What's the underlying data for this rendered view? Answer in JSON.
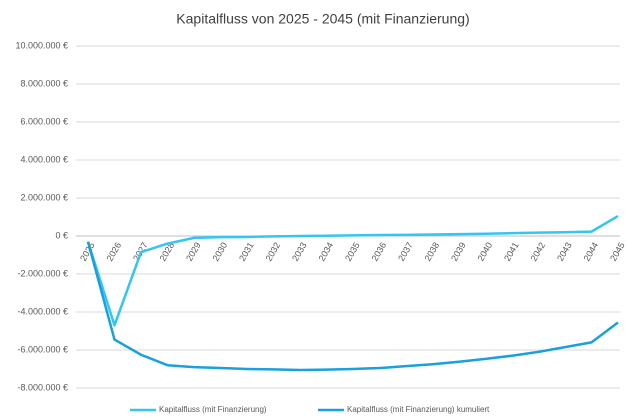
{
  "chart_data": {
    "type": "line",
    "title": "Kapitalfluss von 2025 - 2045 (mit Finanzierung)",
    "categories": [
      "2025",
      "2026",
      "2027",
      "2028",
      "2029",
      "2030",
      "2031",
      "2032",
      "2033",
      "2034",
      "2035",
      "2036",
      "2037",
      "2038",
      "2039",
      "2040",
      "2041",
      "2042",
      "2043",
      "2044",
      "2045"
    ],
    "series": [
      {
        "name": "Kapitalfluss (mit Finanzierung)",
        "color": "#33c5f3",
        "values": [
          -300000,
          -4700000,
          -850000,
          -400000,
          -100000,
          -60000,
          -50000,
          -20000,
          0,
          10000,
          30000,
          50000,
          60000,
          80000,
          100000,
          120000,
          150000,
          180000,
          200000,
          230000,
          1050000
        ]
      },
      {
        "name": "Kapitalfluss (mit Finanzierung) kumuliert",
        "color": "#1aa0dc",
        "values": [
          -300000,
          -5450000,
          -6250000,
          -6800000,
          -6900000,
          -6950000,
          -7000000,
          -7020000,
          -7050000,
          -7030000,
          -7000000,
          -6950000,
          -6850000,
          -6750000,
          -6620000,
          -6470000,
          -6300000,
          -6100000,
          -5850000,
          -5600000,
          -4550000
        ]
      }
    ],
    "ylim": [
      -8000000,
      10000000
    ],
    "yticks": [
      {
        "value": -8000000,
        "label": "-8.000.000 €"
      },
      {
        "value": -6000000,
        "label": "-6.000.000 €"
      },
      {
        "value": -4000000,
        "label": "-4.000.000 €"
      },
      {
        "value": -2000000,
        "label": "-2.000.000 €"
      },
      {
        "value": 0,
        "label": "0 €"
      },
      {
        "value": 2000000,
        "label": "2.000.000 €"
      },
      {
        "value": 4000000,
        "label": "4.000.000 €"
      },
      {
        "value": 6000000,
        "label": "6.000.000 €"
      },
      {
        "value": 8000000,
        "label": "8.000.000 €"
      },
      {
        "value": 10000000,
        "label": "10.000.000 €"
      }
    ],
    "grid": true,
    "legend": "bottom"
  }
}
